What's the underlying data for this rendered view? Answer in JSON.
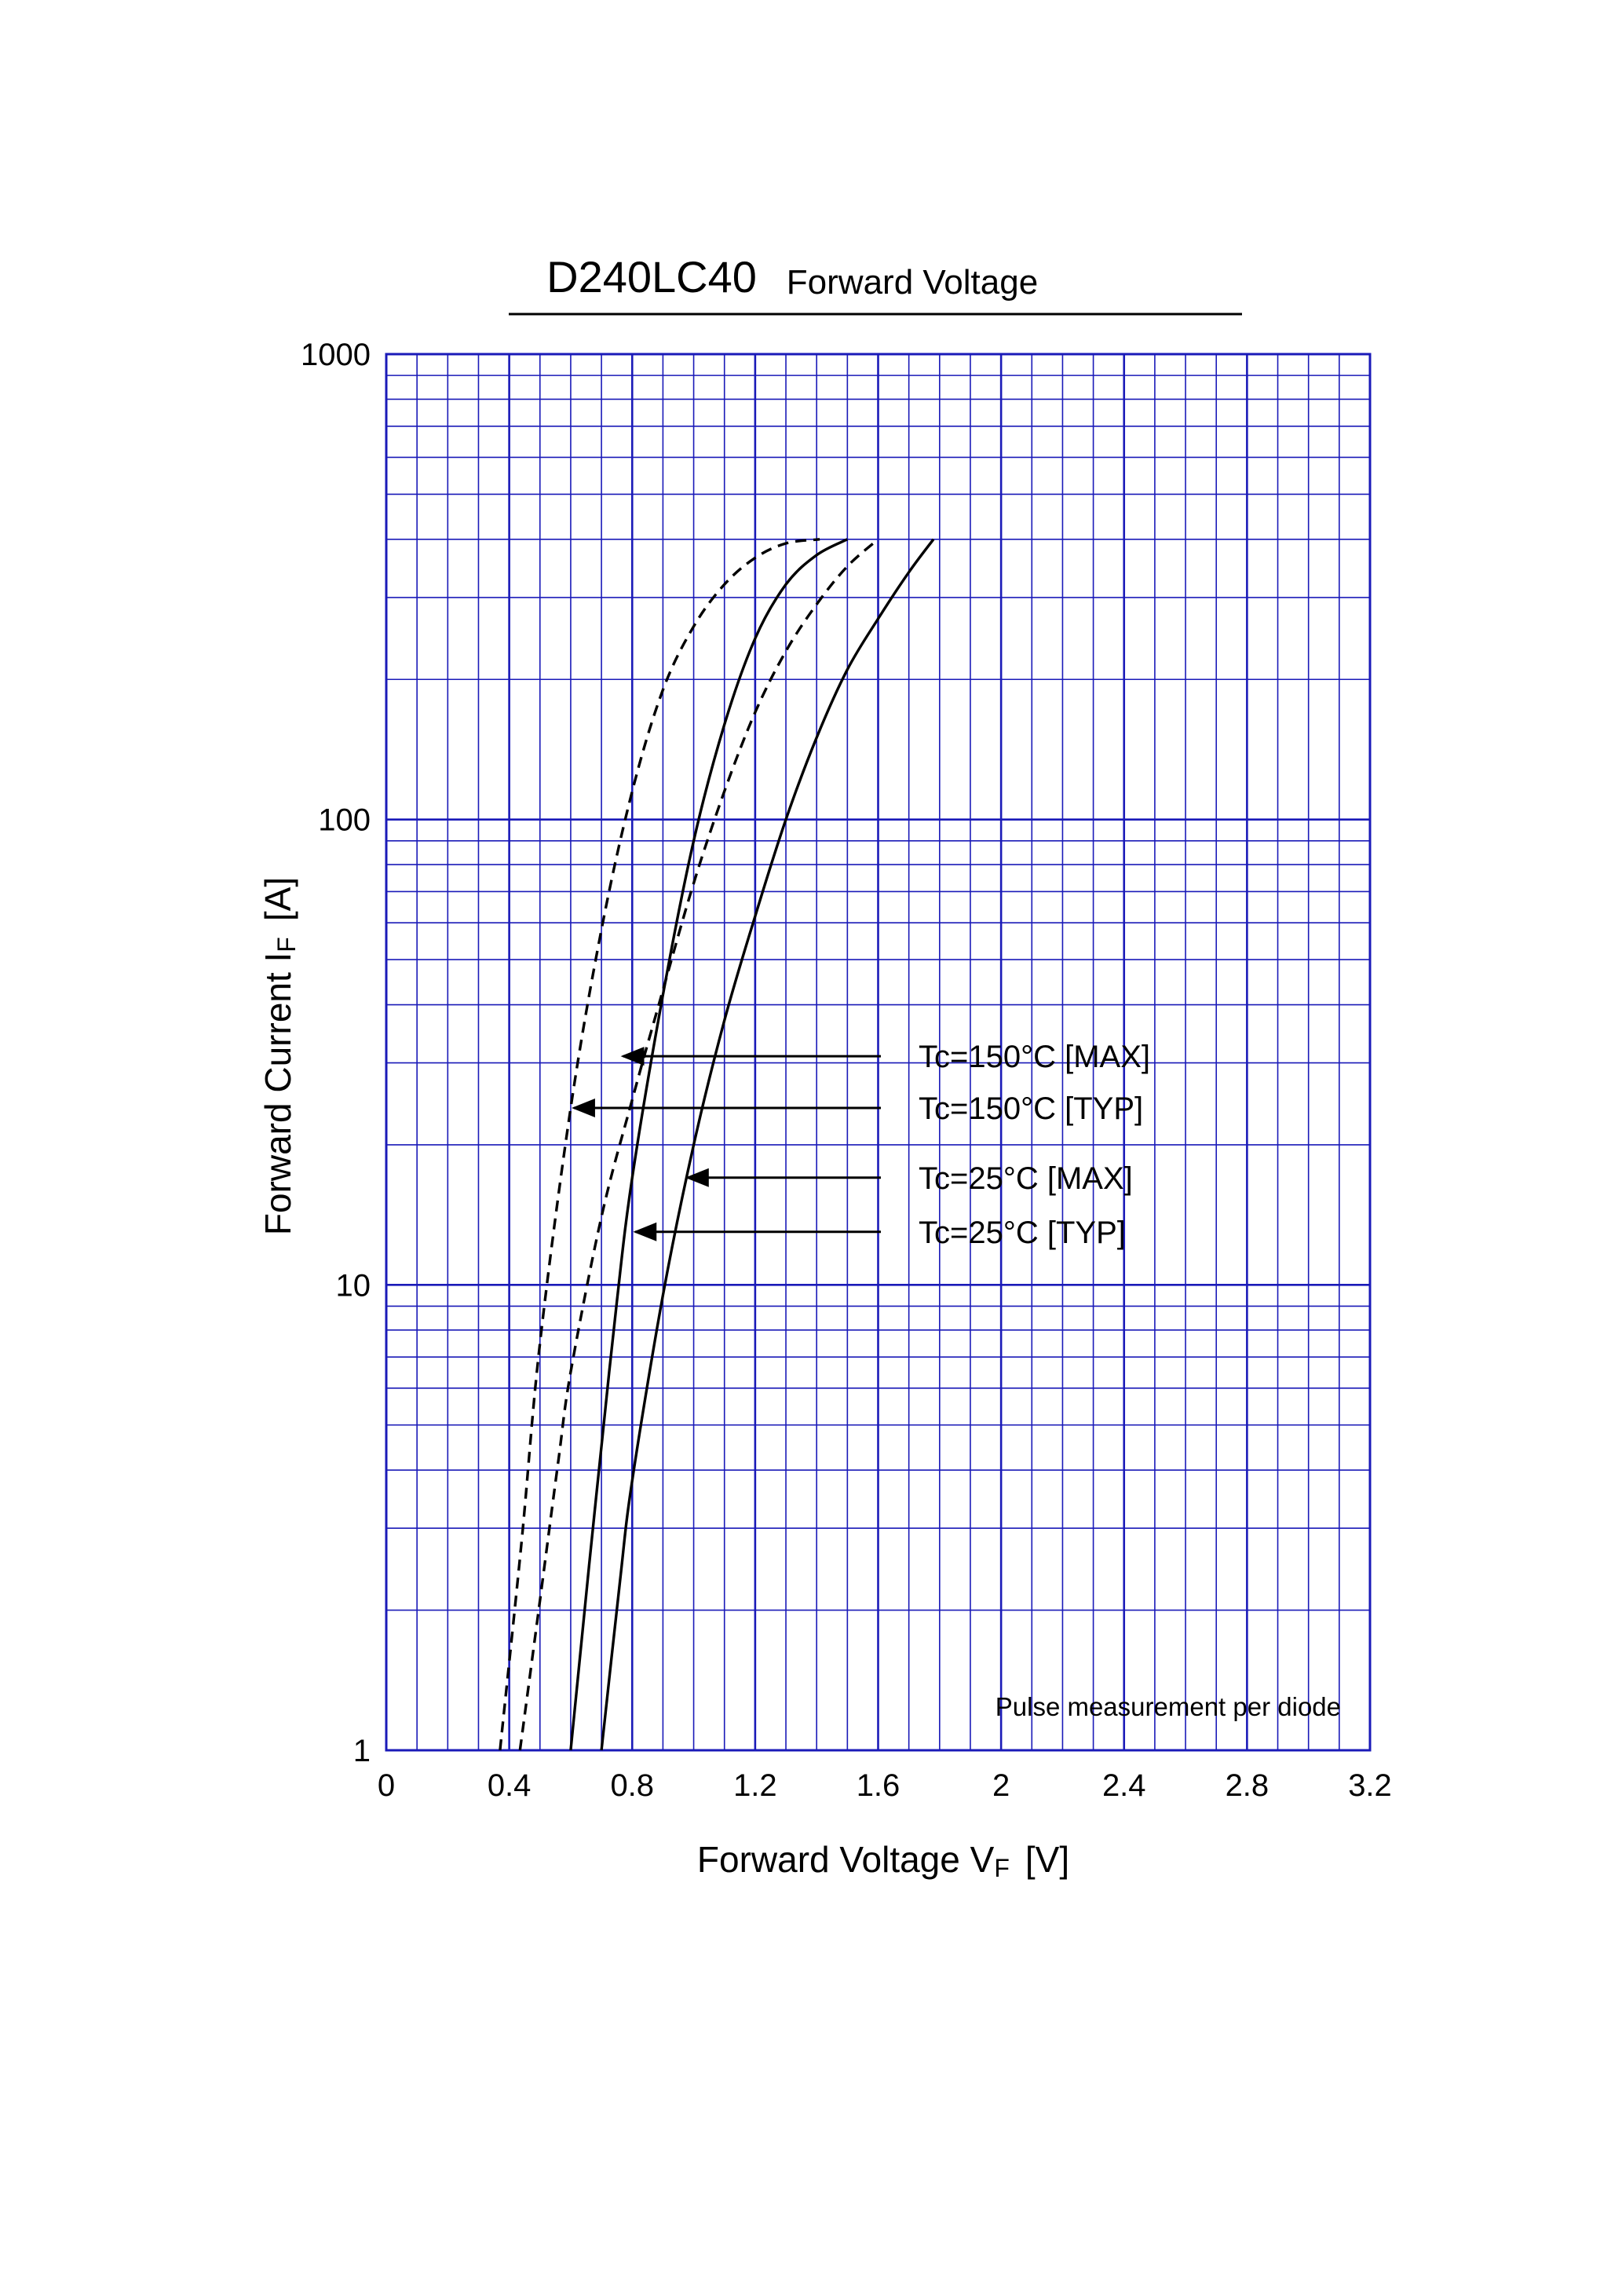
{
  "chart_data": {
    "type": "line",
    "title": "D240LC40",
    "subtitle": "Forward  Voltage",
    "xlabel": {
      "main": "Forward Voltage  V",
      "sub": "F",
      "unit": "[V]"
    },
    "ylabel": {
      "main": "Forward Current  I",
      "sub": "F",
      "unit": "[A]"
    },
    "xlim": [
      0,
      3.2
    ],
    "ylim": [
      1,
      1000
    ],
    "yscale": "log",
    "grid": true,
    "x_ticks": [
      {
        "value": 0,
        "label": "0"
      },
      {
        "value": 0.4,
        "label": "0.4"
      },
      {
        "value": 0.8,
        "label": "0.8"
      },
      {
        "value": 1.2,
        "label": "1.2"
      },
      {
        "value": 1.6,
        "label": "1.6"
      },
      {
        "value": 2.0,
        "label": "2"
      },
      {
        "value": 2.4,
        "label": "2.4"
      },
      {
        "value": 2.8,
        "label": "2.8"
      },
      {
        "value": 3.2,
        "label": "3.2"
      }
    ],
    "y_ticks": [
      {
        "value": 1,
        "label": "1"
      },
      {
        "value": 10,
        "label": "10"
      },
      {
        "value": 100,
        "label": "100"
      },
      {
        "value": 1000,
        "label": "1000"
      }
    ],
    "note": "Pulse  measurement  per  diode",
    "colors": {
      "grid": "#1a1ab8",
      "curve": "#000000"
    },
    "series": [
      {
        "name": "Tc=150°C [MAX]",
        "style": "dashed",
        "x": [
          0.435,
          0.5,
          0.56,
          0.6,
          0.7,
          0.8,
          0.9,
          1.0,
          1.1,
          1.2,
          1.3,
          1.4,
          1.5,
          1.6
        ],
        "y": [
          1,
          2.1,
          4.2,
          6.5,
          14,
          25,
          43,
          73,
          115,
          170,
          230,
          290,
          350,
          400
        ]
      },
      {
        "name": "Tc=150°C [TYP]",
        "style": "dashed",
        "x": [
          0.37,
          0.44,
          0.5,
          0.6,
          0.7,
          0.8,
          0.9,
          1.0,
          1.1,
          1.2,
          1.3,
          1.41
        ],
        "y": [
          1,
          2.8,
          7.5,
          24,
          58,
          115,
          190,
          260,
          320,
          365,
          392,
          400
        ]
      },
      {
        "name": "Tc=25°C [MAX]",
        "style": "solid",
        "x": [
          0.7,
          0.76,
          0.8,
          0.9,
          1.0,
          1.1,
          1.2,
          1.3,
          1.4,
          1.5,
          1.6,
          1.7,
          1.78
        ],
        "y": [
          1,
          2.3,
          3.8,
          9.5,
          20,
          37,
          62,
          100,
          150,
          210,
          270,
          340,
          400
        ]
      },
      {
        "name": "Tc=25°C [TYP]",
        "style": "solid",
        "x": [
          0.6,
          0.66,
          0.7,
          0.75,
          0.8,
          0.9,
          1.0,
          1.1,
          1.2,
          1.3,
          1.4,
          1.5
        ],
        "y": [
          1,
          2.5,
          4.5,
          9.2,
          17,
          42,
          90,
          160,
          245,
          320,
          370,
          400
        ]
      }
    ],
    "annotations": [
      {
        "text": "Tc=150°C [MAX]",
        "series": 0,
        "arrow_to": {
          "x": 0.76,
          "y": 31
        }
      },
      {
        "text": "Tc=150°C [TYP]",
        "series": 1,
        "arrow_to": {
          "x": 0.6,
          "y": 24
        }
      },
      {
        "text": "Tc=25°C [MAX]",
        "series": 2,
        "arrow_to": {
          "x": 0.97,
          "y": 17
        }
      },
      {
        "text": "Tc=25°C [TYP]",
        "series": 3,
        "arrow_to": {
          "x": 0.8,
          "y": 13
        }
      }
    ]
  }
}
